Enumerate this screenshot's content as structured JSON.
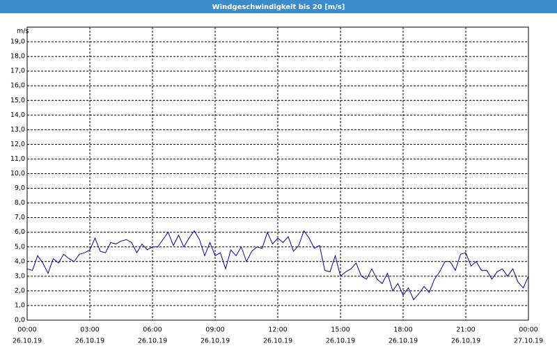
{
  "chart_data": {
    "type": "line",
    "title": "Windgeschwindigkeit bis 20 [m/s]",
    "y_label": "m/s",
    "color": "#0000a0",
    "grid": true,
    "x": [
      0,
      0.25,
      0.5,
      0.75,
      1,
      1.25,
      1.5,
      1.75,
      2,
      2.25,
      2.5,
      2.75,
      3,
      3.25,
      3.5,
      3.75,
      4,
      4.25,
      4.5,
      4.75,
      5,
      5.25,
      5.5,
      5.75,
      6,
      6.25,
      6.5,
      6.75,
      7,
      7.25,
      7.5,
      7.75,
      8,
      8.25,
      8.5,
      8.75,
      9,
      9.25,
      9.5,
      9.75,
      10,
      10.25,
      10.5,
      10.75,
      11,
      11.25,
      11.5,
      11.75,
      12,
      12.25,
      12.5,
      12.75,
      13,
      13.25,
      13.5,
      13.75,
      14,
      14.25,
      14.5,
      14.75,
      15,
      15.25,
      15.5,
      15.75,
      16,
      16.25,
      16.5,
      16.75,
      17,
      17.25,
      17.5,
      17.75,
      18,
      18.25,
      18.5,
      18.75,
      19,
      19.25,
      19.5,
      19.75,
      20,
      20.25,
      20.5,
      20.75,
      21,
      21.25,
      21.5,
      21.75,
      22,
      22.25,
      22.5,
      22.75,
      23,
      23.25,
      23.5,
      23.75,
      24
    ],
    "values": [
      3.5,
      3.4,
      4.4,
      3.9,
      3.2,
      4.2,
      3.9,
      4.5,
      4.2,
      4.0,
      4.5,
      4.6,
      4.8,
      5.6,
      4.7,
      4.6,
      5.3,
      5.2,
      5.4,
      5.5,
      5.3,
      4.6,
      5.2,
      4.8,
      5.0,
      5.0,
      5.5,
      6.0,
      5.1,
      5.8,
      5.0,
      5.6,
      6.1,
      5.5,
      4.4,
      5.3,
      4.4,
      4.6,
      3.5,
      4.8,
      4.4,
      5.0,
      4.0,
      4.7,
      5.0,
      4.9,
      6.0,
      5.2,
      5.6,
      5.3,
      5.7,
      4.7,
      5.1,
      6.1,
      5.6,
      4.9,
      5.1,
      3.4,
      3.3,
      4.4,
      3.0,
      3.3,
      3.5,
      3.9,
      3.0,
      2.8,
      3.5,
      2.8,
      2.5,
      3.2,
      2.0,
      2.5,
      1.7,
      2.2,
      1.4,
      1.8,
      2.3,
      1.9,
      2.8,
      3.3,
      4.0,
      4.0,
      3.4,
      4.5,
      4.6,
      3.7,
      4.0,
      3.4,
      3.4,
      2.8,
      3.3,
      3.5,
      3.0,
      3.5,
      2.6,
      2.2,
      3.0
    ],
    "xlim": [
      0,
      24
    ],
    "xticks": [
      {
        "value": 0,
        "label": "00:00"
      },
      {
        "value": 3,
        "label": "03:00"
      },
      {
        "value": 6,
        "label": "06:00"
      },
      {
        "value": 9,
        "label": "09:00"
      },
      {
        "value": 12,
        "label": "12:00"
      },
      {
        "value": 15,
        "label": "15:00"
      },
      {
        "value": 18,
        "label": "18:00"
      },
      {
        "value": 21,
        "label": "21:00"
      },
      {
        "value": 24,
        "label": "00:00"
      }
    ],
    "xtick_dates": [
      "26.10.19",
      "26.10.19",
      "26.10.19",
      "26.10.19",
      "26.10.19",
      "26.10.19",
      "26.10.19",
      "26.10.19",
      "27.10.19"
    ],
    "ylim": [
      0,
      20
    ],
    "yticks": [
      {
        "value": 0,
        "label": "0,0"
      },
      {
        "value": 1,
        "label": "1,0"
      },
      {
        "value": 2,
        "label": "2,0"
      },
      {
        "value": 3,
        "label": "3,0"
      },
      {
        "value": 4,
        "label": "4,0"
      },
      {
        "value": 5,
        "label": "5,0"
      },
      {
        "value": 6,
        "label": "6,0"
      },
      {
        "value": 7,
        "label": "7,0"
      },
      {
        "value": 8,
        "label": "8,0"
      },
      {
        "value": 9,
        "label": "9,0"
      },
      {
        "value": 10,
        "label": "10,0"
      },
      {
        "value": 11,
        "label": "11,0"
      },
      {
        "value": 12,
        "label": "12,0"
      },
      {
        "value": 13,
        "label": "13,0"
      },
      {
        "value": 14,
        "label": "14,0"
      },
      {
        "value": 15,
        "label": "15,0"
      },
      {
        "value": 16,
        "label": "16,0"
      },
      {
        "value": 17,
        "label": "17,0"
      },
      {
        "value": 18,
        "label": "18,0"
      },
      {
        "value": 19,
        "label": "19,0"
      }
    ]
  }
}
